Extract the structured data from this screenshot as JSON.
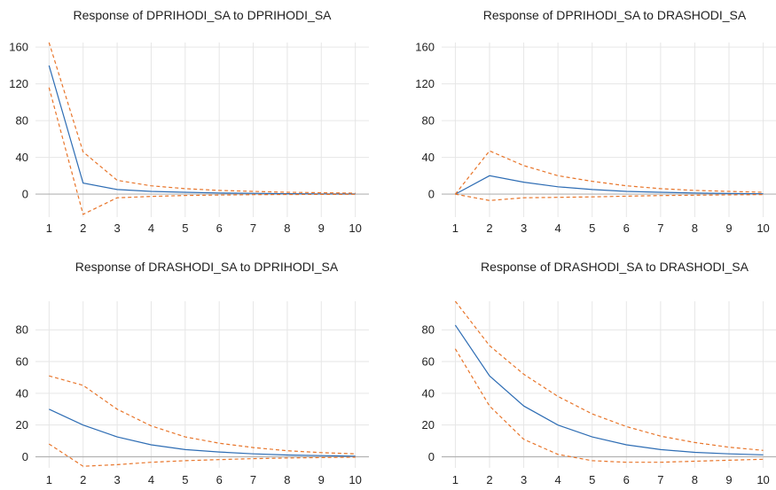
{
  "colors": {
    "response": "#2E6DB4",
    "band": "#E8752A",
    "grid": "#E6E6E6",
    "zero": "#B3B3B3"
  },
  "chart_data": [
    {
      "type": "line",
      "title": "Response of DPRIHODI_SA to DPRIHODI_SA",
      "x": [
        1,
        2,
        3,
        4,
        5,
        6,
        7,
        8,
        9,
        10
      ],
      "ylim": [
        -25,
        165
      ],
      "yticks": [
        0,
        40,
        80,
        120,
        160
      ],
      "grid": true,
      "series": [
        {
          "role": "response",
          "values": [
            140,
            12,
            5,
            3,
            2,
            1.2,
            0.8,
            0.5,
            0.3,
            0.2
          ]
        },
        {
          "role": "upper",
          "values": [
            165,
            46,
            15,
            9,
            6,
            4,
            3,
            2,
            1.5,
            1
          ]
        },
        {
          "role": "lower",
          "values": [
            116,
            -22,
            -4,
            -2.5,
            -1.5,
            -1,
            -0.6,
            -0.4,
            -0.3,
            -0.2
          ]
        }
      ]
    },
    {
      "type": "line",
      "title": "Response of DPRIHODI_SA to DRASHODI_SA",
      "x": [
        1,
        2,
        3,
        4,
        5,
        6,
        7,
        8,
        9,
        10
      ],
      "ylim": [
        -25,
        165
      ],
      "yticks": [
        0,
        40,
        80,
        120,
        160
      ],
      "grid": true,
      "series": [
        {
          "role": "response",
          "values": [
            0,
            20,
            13,
            8,
            5,
            3,
            2,
            1.2,
            0.7,
            0.4
          ]
        },
        {
          "role": "upper",
          "values": [
            0,
            47,
            31,
            20,
            14,
            9,
            6,
            4,
            3,
            2
          ]
        },
        {
          "role": "lower",
          "values": [
            0,
            -7,
            -4,
            -3.5,
            -3,
            -2.2,
            -1.6,
            -1.2,
            -0.8,
            -0.5
          ]
        }
      ]
    },
    {
      "type": "line",
      "title": "Response of DRASHODI_SA to DPRIHODI_SA",
      "x": [
        1,
        2,
        3,
        4,
        5,
        6,
        7,
        8,
        9,
        10
      ],
      "ylim": [
        -7,
        98
      ],
      "yticks": [
        0,
        20,
        40,
        60,
        80
      ],
      "grid": true,
      "series": [
        {
          "role": "response",
          "values": [
            30,
            20,
            12.5,
            7.5,
            4.5,
            3,
            1.8,
            1.1,
            0.7,
            0.4
          ]
        },
        {
          "role": "upper",
          "values": [
            51,
            45,
            30,
            19.5,
            12.5,
            8.5,
            5.8,
            3.8,
            2.6,
            1.8
          ]
        },
        {
          "role": "lower",
          "values": [
            8,
            -6,
            -5,
            -3.5,
            -2.5,
            -1.8,
            -1.2,
            -0.8,
            -0.5,
            -0.3
          ]
        }
      ]
    },
    {
      "type": "line",
      "title": "Response of DRASHODI_SA to DRASHODI_SA",
      "x": [
        1,
        2,
        3,
        4,
        5,
        6,
        7,
        8,
        9,
        10
      ],
      "ylim": [
        -7,
        98
      ],
      "yticks": [
        0,
        20,
        40,
        60,
        80
      ],
      "grid": true,
      "series": [
        {
          "role": "response",
          "values": [
            83,
            51,
            32,
            20,
            12.5,
            7.5,
            4.5,
            2.8,
            1.8,
            1.2
          ]
        },
        {
          "role": "upper",
          "values": [
            98,
            70,
            52,
            38,
            27,
            19,
            13,
            9,
            6,
            4
          ]
        },
        {
          "role": "lower",
          "values": [
            68,
            32,
            11,
            1.5,
            -2.5,
            -3.5,
            -3.5,
            -2.8,
            -2.2,
            -1.6
          ]
        }
      ]
    }
  ]
}
